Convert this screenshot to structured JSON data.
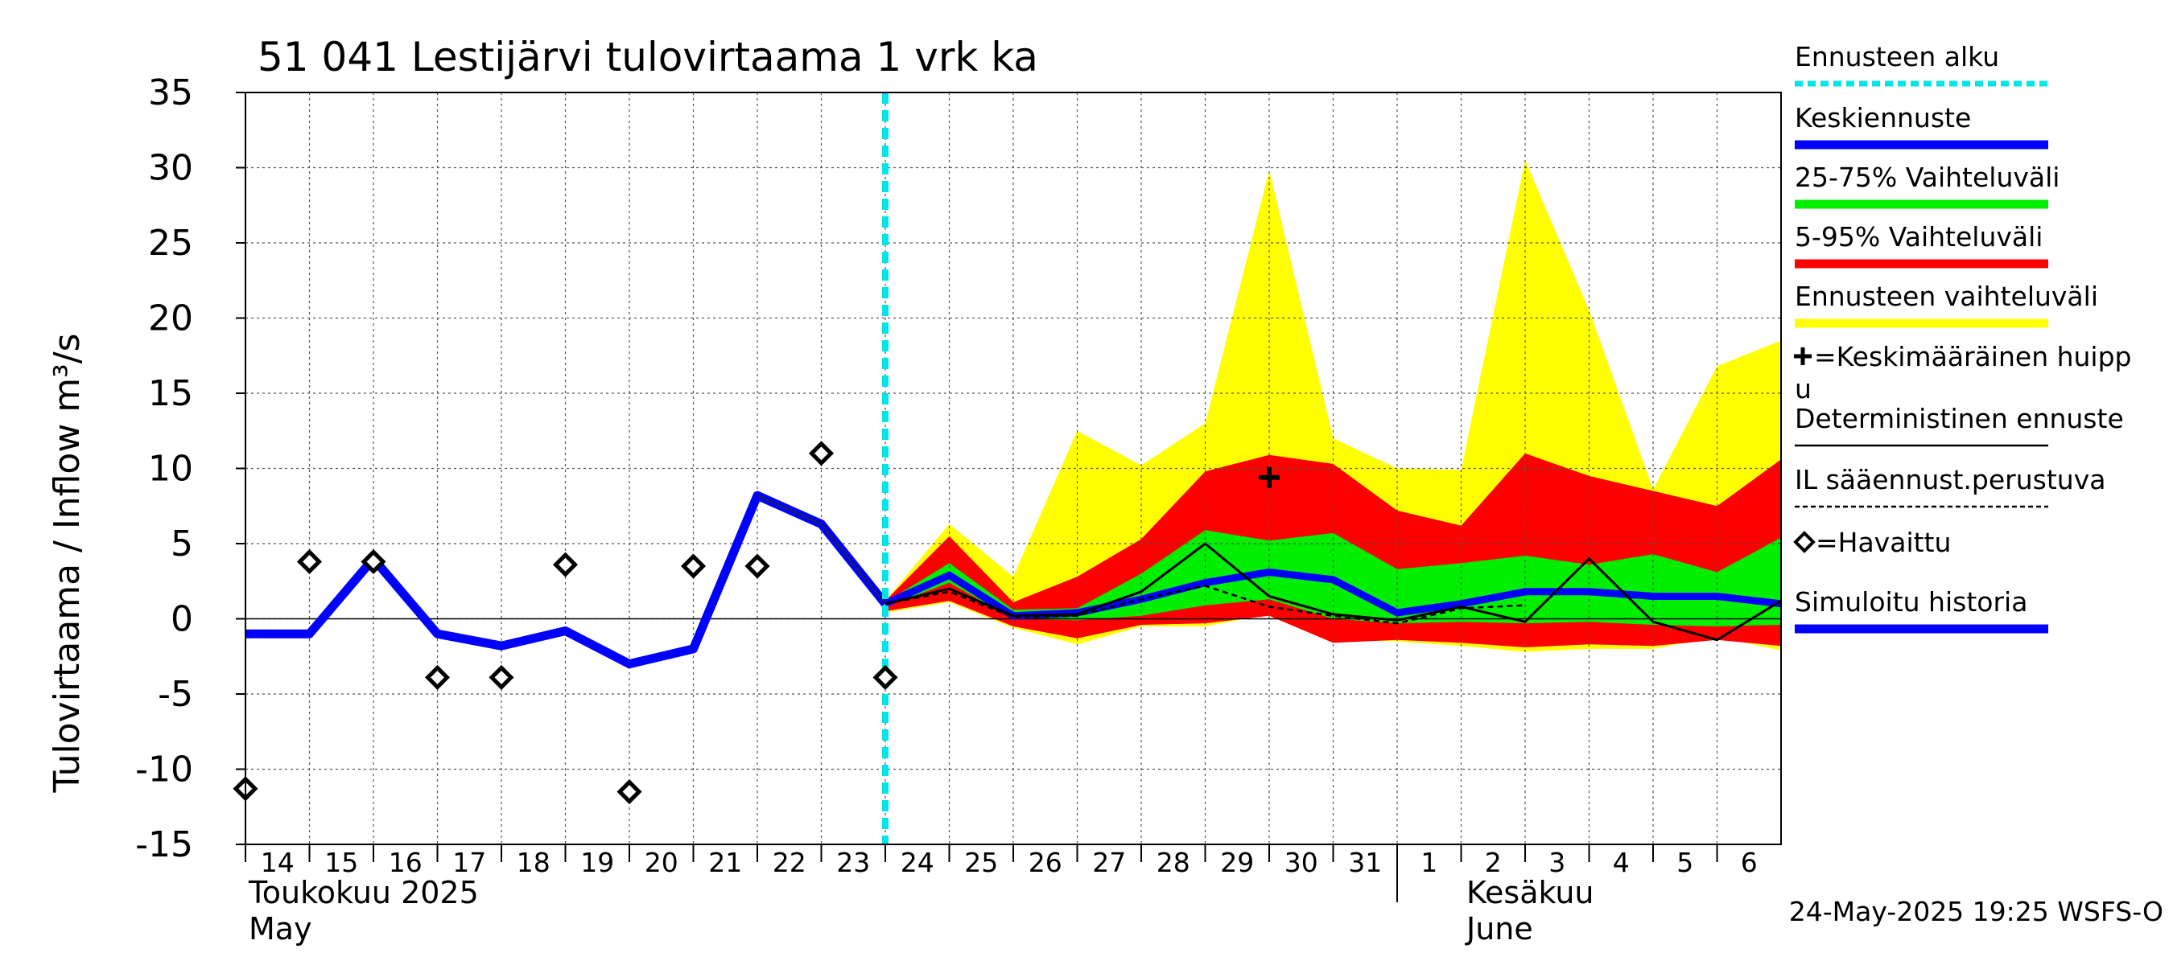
{
  "colors": {
    "forecast_start": "#00e5e5",
    "mean_forecast": "#0000ff",
    "band_25_75": "#00ee00",
    "band_5_95": "#ff0000",
    "band_full": "#ffff00",
    "simulated_history": "#0000ff",
    "deterministic": "#000000"
  },
  "chart_data": {
    "type": "line",
    "title": "51 041 Lestijärvi tulovirtaama 1 vrk ka",
    "ylabel": "Tulovirtaama / Inflow    m³/s",
    "ylim": [
      -15,
      35
    ],
    "yticks": [
      -15,
      -10,
      -5,
      0,
      5,
      10,
      15,
      20,
      25,
      30,
      35
    ],
    "ytick_labels": [
      "-15",
      "-10",
      "-5",
      "0",
      "5",
      "10",
      "15",
      "20",
      "25",
      "30",
      "35"
    ],
    "x_days": [
      "14",
      "15",
      "16",
      "17",
      "18",
      "19",
      "20",
      "21",
      "22",
      "23",
      "24",
      "25",
      "26",
      "27",
      "28",
      "29",
      "30",
      "31",
      "1",
      "2",
      "3",
      "4",
      "5",
      "6"
    ],
    "month_labels": [
      {
        "fi": "Toukokuu  2025",
        "en": "May",
        "day_index": 0
      },
      {
        "fi": "Kesäkuu",
        "en": "June",
        "day_index": 18
      }
    ],
    "month_divider_index": 18,
    "forecast_start_index": 10,
    "x_end_index": 24,
    "simulated_history": {
      "x": [
        0,
        1,
        2,
        3,
        4,
        5,
        6,
        7,
        8,
        9,
        10
      ],
      "y": [
        -1.0,
        -1.0,
        4.0,
        -1.0,
        -1.8,
        -0.8,
        -3.0,
        -2.0,
        8.2,
        6.3,
        1.0
      ]
    },
    "observed": {
      "x": [
        0,
        1,
        2,
        3,
        4,
        5,
        6,
        7,
        8,
        9,
        10
      ],
      "y": [
        -11.3,
        3.8,
        3.8,
        -3.9,
        -3.9,
        3.6,
        -11.5,
        3.5,
        3.5,
        11.0,
        -3.9
      ]
    },
    "mean_forecast": {
      "x": [
        10,
        11,
        12,
        13,
        14,
        15,
        16,
        17,
        18,
        19,
        20,
        21,
        22,
        23,
        24
      ],
      "y": [
        1.0,
        2.9,
        0.2,
        0.4,
        1.3,
        2.4,
        3.1,
        2.6,
        0.4,
        1.0,
        1.8,
        1.8,
        1.5,
        1.5,
        1.0
      ]
    },
    "deterministic_forecast": {
      "x": [
        10,
        11,
        12,
        13,
        14,
        15,
        16,
        17,
        18,
        19,
        20,
        21,
        22,
        23,
        24
      ],
      "y": [
        1.0,
        2.0,
        0.2,
        0.3,
        1.8,
        5.0,
        1.5,
        0.3,
        -0.1,
        0.8,
        -0.2,
        4.0,
        -0.2,
        -1.4,
        1.2
      ]
    },
    "il_forecast": {
      "x": [
        10,
        11,
        12,
        13,
        14,
        15,
        16,
        17,
        18,
        19,
        20
      ],
      "y": [
        1.0,
        1.8,
        0.1,
        0.2,
        1.3,
        2.2,
        0.8,
        0.2,
        -0.3,
        0.7,
        0.9
      ]
    },
    "mean_peak": {
      "x": 16,
      "y": 9.4
    },
    "band_full": {
      "x": [
        10,
        11,
        12,
        13,
        14,
        15,
        16,
        17,
        18,
        19,
        20,
        21,
        22,
        23,
        24
      ],
      "upper": [
        1.2,
        6.3,
        2.8,
        12.5,
        10.2,
        13.0,
        29.8,
        12.0,
        10.0,
        9.9,
        30.5,
        20.5,
        8.6,
        16.8,
        18.5
      ],
      "lower": [
        0.4,
        1.1,
        -0.6,
        -1.7,
        -0.5,
        -0.5,
        0.3,
        -1.4,
        -1.5,
        -1.8,
        -2.2,
        -2.0,
        -2.0,
        -1.2,
        -2.1
      ]
    },
    "band_5_95": {
      "x": [
        10,
        11,
        12,
        13,
        14,
        15,
        16,
        17,
        18,
        19,
        20,
        21,
        22,
        23,
        24
      ],
      "upper": [
        1.2,
        5.5,
        1.1,
        2.8,
        5.3,
        9.8,
        10.9,
        10.3,
        7.2,
        6.2,
        11.0,
        9.5,
        8.5,
        7.5,
        10.6
      ],
      "lower": [
        0.5,
        1.2,
        -0.5,
        -1.3,
        -0.4,
        -0.3,
        0.2,
        -1.6,
        -1.4,
        -1.6,
        -1.9,
        -1.7,
        -1.8,
        -1.4,
        -1.8
      ]
    },
    "band_25_75": {
      "x": [
        10,
        11,
        12,
        13,
        14,
        15,
        16,
        17,
        18,
        19,
        20,
        21,
        22,
        23,
        24
      ],
      "upper": [
        1.1,
        3.7,
        0.6,
        0.7,
        3.0,
        5.9,
        5.2,
        5.7,
        3.3,
        3.7,
        4.2,
        3.6,
        4.3,
        3.1,
        5.4
      ],
      "lower": [
        0.8,
        2.4,
        0.0,
        -0.1,
        0.2,
        0.9,
        1.3,
        0.0,
        -0.3,
        -0.2,
        -0.3,
        -0.2,
        -0.4,
        -0.5,
        -0.4
      ]
    },
    "legend": [
      {
        "key": "forecast_start",
        "label": "Ennusteen alku",
        "style": "dotted",
        "color": "#00e5e5"
      },
      {
        "key": "mean_forecast",
        "label": "Keskiennuste",
        "style": "thick",
        "color": "#0000ff"
      },
      {
        "key": "band_25_75",
        "label": "25-75% Vaihteluväli",
        "style": "thick",
        "color": "#00ee00"
      },
      {
        "key": "band_5_95",
        "label": "5-95% Vaihteluväli",
        "style": "thick",
        "color": "#ff0000"
      },
      {
        "key": "band_full",
        "label": "Ennusteen vaihteluväli",
        "style": "thick",
        "color": "#ffff00"
      },
      {
        "key": "mean_peak",
        "label": "=Keskimääräinen huipp",
        "label2": "u",
        "style": "plus",
        "color": "#000000"
      },
      {
        "key": "deterministic",
        "label": "Deterministinen ennuste",
        "style": "thin",
        "color": "#000000"
      },
      {
        "key": "il",
        "label": "IL sääennust.perustuva",
        "style": "dashed",
        "color": "#000000"
      },
      {
        "key": "observed",
        "label": "=Havaittu",
        "style": "diamond",
        "color": "#000000"
      },
      {
        "key": "simulated_history",
        "label": "Simuloitu historia",
        "style": "thick",
        "color": "#0000ff"
      }
    ]
  },
  "footer": {
    "timestamp": "24-May-2025 19:25 WSFS-O"
  }
}
